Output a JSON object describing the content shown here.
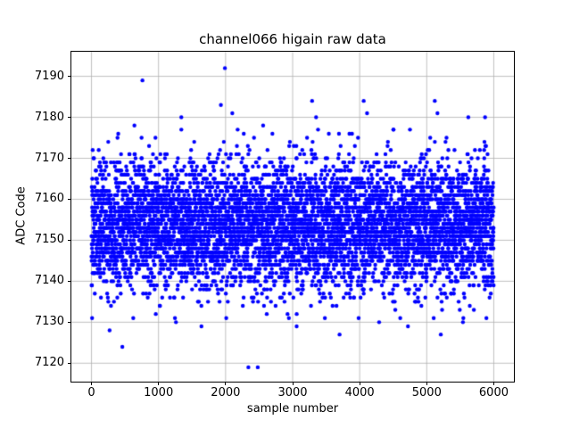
{
  "chart_data": {
    "type": "scatter",
    "title": "channel066 higain raw data",
    "xlabel": "sample number",
    "ylabel": "ADC Code",
    "xlim": [
      -300,
      6300
    ],
    "ylim": [
      7115.5,
      7196
    ],
    "xticks": [
      0,
      1000,
      2000,
      3000,
      4000,
      5000,
      6000
    ],
    "yticks": [
      7120,
      7130,
      7140,
      7150,
      7160,
      7170,
      7180,
      7190
    ],
    "grid": true,
    "grid_color": "#b0b0b0",
    "axis_color": "#000000",
    "marker_color": "#0000ff",
    "marker_radius": 2.2,
    "n_points": 6000,
    "seed": 42,
    "y_mean": 7153.5,
    "y_std": 7.8,
    "y_quantized": true,
    "y_clamp": [
      7131,
      7177
    ],
    "extra_points": [
      [
        760,
        7189
      ],
      [
        1990,
        7192
      ],
      [
        1930,
        7183
      ],
      [
        2100,
        7181
      ],
      [
        1340,
        7180
      ],
      [
        2560,
        7178
      ],
      [
        3290,
        7184
      ],
      [
        3350,
        7180
      ],
      [
        4060,
        7184
      ],
      [
        4110,
        7181
      ],
      [
        5120,
        7184
      ],
      [
        5160,
        7181
      ],
      [
        5620,
        7180
      ],
      [
        5870,
        7180
      ],
      [
        640,
        7178
      ],
      [
        4750,
        7177
      ],
      [
        270,
        7128
      ],
      [
        460,
        7124
      ],
      [
        1260,
        7130
      ],
      [
        1640,
        7129
      ],
      [
        2340,
        7119
      ],
      [
        2480,
        7119
      ],
      [
        3060,
        7129
      ],
      [
        3700,
        7127
      ],
      [
        4290,
        7130
      ],
      [
        4720,
        7129
      ],
      [
        5210,
        7127
      ],
      [
        5540,
        7130
      ],
      [
        5890,
        7131
      ]
    ]
  }
}
